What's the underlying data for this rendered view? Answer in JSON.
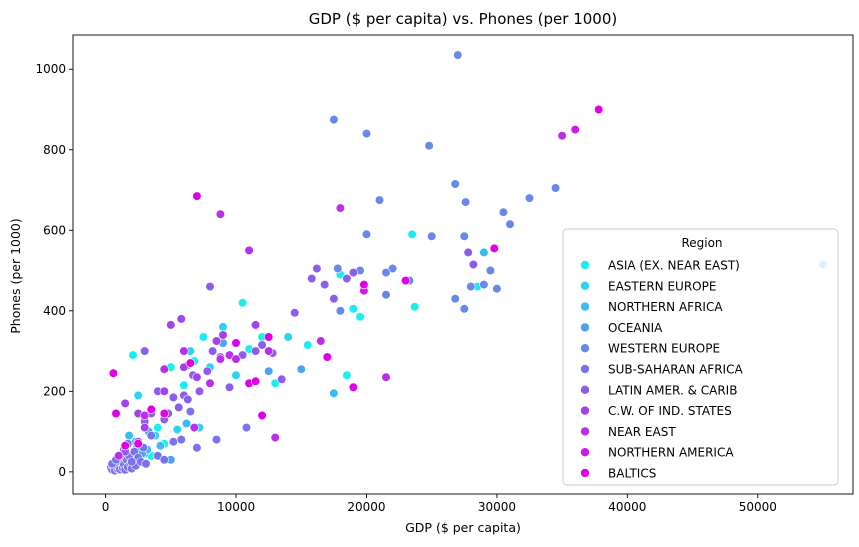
{
  "chart_data": {
    "type": "scatter",
    "title": "GDP ($ per capita) vs. Phones (per 1000)",
    "xlabel": "GDP ($ per capita)",
    "ylabel": "Phones (per 1000)",
    "xlim": [
      -2500,
      57300
    ],
    "ylim": [
      -55,
      1085
    ],
    "xticks": [
      0,
      10000,
      20000,
      30000,
      40000,
      50000
    ],
    "yticks": [
      0,
      200,
      400,
      600,
      800,
      1000
    ],
    "grid": false,
    "legend": {
      "title": "Region",
      "placement": "lower-right"
    },
    "series": [
      {
        "name": "ASIA (EX. NEAR EAST)",
        "color": "#1aeef0",
        "points": [
          [
            1300,
            30
          ],
          [
            2100,
            290
          ],
          [
            2600,
            70
          ],
          [
            3500,
            40
          ],
          [
            4000,
            110
          ],
          [
            4500,
            70
          ],
          [
            5000,
            260
          ],
          [
            6000,
            215
          ],
          [
            6800,
            275
          ],
          [
            7500,
            335
          ],
          [
            10500,
            420
          ],
          [
            11000,
            305
          ],
          [
            12000,
            335
          ],
          [
            13000,
            220
          ],
          [
            15500,
            315
          ],
          [
            18000,
            490
          ],
          [
            18500,
            240
          ],
          [
            19000,
            405
          ],
          [
            19500,
            385
          ],
          [
            23500,
            590
          ],
          [
            23700,
            410
          ],
          [
            28500,
            460
          ]
        ]
      },
      {
        "name": "EASTERN EUROPE",
        "color": "#2bd4ef",
        "points": [
          [
            2500,
            190
          ],
          [
            3000,
            45
          ],
          [
            3800,
            90
          ],
          [
            5500,
            105
          ],
          [
            6500,
            300
          ],
          [
            7200,
            110
          ],
          [
            8000,
            260
          ],
          [
            9000,
            360
          ],
          [
            10000,
            240
          ],
          [
            11500,
            225
          ],
          [
            14000,
            335
          ]
        ]
      },
      {
        "name": "NORTHERN AFRICA",
        "color": "#3cbcee",
        "points": [
          [
            1000,
            25
          ],
          [
            1800,
            90
          ],
          [
            2300,
            75
          ],
          [
            3200,
            55
          ],
          [
            4200,
            65
          ],
          [
            6200,
            120
          ],
          [
            17500,
            195
          ],
          [
            29000,
            545
          ]
        ]
      },
      {
        "name": "OCEANIA",
        "color": "#4da3ee",
        "points": [
          [
            1200,
            20
          ],
          [
            1600,
            35
          ],
          [
            2000,
            15
          ],
          [
            2400,
            60
          ],
          [
            2800,
            45
          ],
          [
            3300,
            100
          ],
          [
            5000,
            30
          ],
          [
            6300,
            265
          ],
          [
            9000,
            320
          ],
          [
            12500,
            250
          ],
          [
            15000,
            255
          ],
          [
            55000,
            515
          ]
        ]
      },
      {
        "name": "WESTERN EUROPE",
        "color": "#6888ec",
        "points": [
          [
            17500,
            875
          ],
          [
            20000,
            840
          ],
          [
            24800,
            810
          ],
          [
            27000,
            1035
          ],
          [
            26800,
            715
          ],
          [
            27600,
            670
          ],
          [
            21000,
            675
          ],
          [
            17800,
            505
          ],
          [
            20000,
            590
          ],
          [
            22000,
            505
          ],
          [
            23300,
            475
          ],
          [
            25000,
            585
          ],
          [
            27500,
            585
          ],
          [
            27800,
            545
          ],
          [
            28000,
            460
          ],
          [
            29000,
            465
          ],
          [
            29500,
            500
          ],
          [
            30000,
            455
          ],
          [
            30500,
            645
          ],
          [
            31000,
            615
          ],
          [
            32500,
            680
          ],
          [
            34500,
            705
          ],
          [
            26800,
            430
          ],
          [
            27500,
            405
          ],
          [
            21500,
            440
          ],
          [
            18000,
            400
          ],
          [
            19500,
            500
          ],
          [
            21500,
            495
          ]
        ]
      },
      {
        "name": "SUB-SAHARAN AFRICA",
        "color": "#7a73eb",
        "points": [
          [
            400,
            10
          ],
          [
            500,
            5
          ],
          [
            600,
            15
          ],
          [
            700,
            3
          ],
          [
            800,
            20
          ],
          [
            900,
            8
          ],
          [
            1000,
            12
          ],
          [
            1100,
            6
          ],
          [
            1200,
            25
          ],
          [
            1300,
            10
          ],
          [
            1400,
            18
          ],
          [
            1500,
            5
          ],
          [
            1600,
            30
          ],
          [
            1700,
            12
          ],
          [
            1800,
            40
          ],
          [
            1900,
            20
          ],
          [
            2000,
            8
          ],
          [
            2200,
            50
          ],
          [
            2300,
            15
          ],
          [
            2500,
            35
          ],
          [
            2700,
            25
          ],
          [
            2900,
            60
          ],
          [
            3100,
            20
          ],
          [
            3500,
            90
          ],
          [
            4000,
            40
          ],
          [
            4500,
            30
          ],
          [
            5200,
            75
          ],
          [
            5800,
            80
          ],
          [
            6500,
            150
          ],
          [
            7000,
            60
          ],
          [
            8500,
            80
          ],
          [
            10800,
            110
          ],
          [
            500,
            20
          ],
          [
            800,
            30
          ],
          [
            1100,
            40
          ],
          [
            1400,
            55
          ],
          [
            1700,
            70
          ],
          [
            2000,
            25
          ]
        ]
      },
      {
        "name": "LATIN AMER. & CARIB",
        "color": "#8b5feb",
        "points": [
          [
            1500,
            50
          ],
          [
            2500,
            75
          ],
          [
            3000,
            125
          ],
          [
            3500,
            145
          ],
          [
            4000,
            200
          ],
          [
            4500,
            130
          ],
          [
            4800,
            145
          ],
          [
            5200,
            185
          ],
          [
            5600,
            160
          ],
          [
            6000,
            190
          ],
          [
            6300,
            180
          ],
          [
            6700,
            240
          ],
          [
            7200,
            200
          ],
          [
            7800,
            250
          ],
          [
            8200,
            300
          ],
          [
            8800,
            285
          ],
          [
            9500,
            210
          ],
          [
            10000,
            320
          ],
          [
            10500,
            290
          ],
          [
            11500,
            300
          ],
          [
            12000,
            315
          ],
          [
            12800,
            295
          ],
          [
            13500,
            230
          ],
          [
            14500,
            395
          ],
          [
            15800,
            480
          ],
          [
            16200,
            505
          ],
          [
            16800,
            465
          ],
          [
            17500,
            430
          ],
          [
            18500,
            480
          ],
          [
            19000,
            495
          ],
          [
            27800,
            545
          ],
          [
            28200,
            515
          ],
          [
            3000,
            300
          ],
          [
            8000,
            460
          ]
        ]
      },
      {
        "name": "C.W. OF IND. STATES",
        "color": "#a443e9",
        "points": [
          [
            1500,
            170
          ],
          [
            2500,
            145
          ],
          [
            3000,
            110
          ],
          [
            4500,
            200
          ],
          [
            5000,
            365
          ],
          [
            5800,
            380
          ],
          [
            6000,
            260
          ],
          [
            7000,
            235
          ],
          [
            8500,
            325
          ],
          [
            9000,
            340
          ],
          [
            11500,
            365
          ]
        ]
      },
      {
        "name": "NEAR EAST",
        "color": "#ba2fe9",
        "points": [
          [
            1000,
            40
          ],
          [
            3000,
            140
          ],
          [
            4500,
            255
          ],
          [
            6000,
            300
          ],
          [
            8000,
            220
          ],
          [
            8800,
            280
          ],
          [
            9500,
            290
          ],
          [
            10000,
            280
          ],
          [
            11000,
            550
          ],
          [
            13000,
            85
          ],
          [
            16500,
            325
          ],
          [
            17000,
            285
          ],
          [
            18000,
            655
          ],
          [
            19000,
            210
          ],
          [
            21500,
            235
          ],
          [
            35000,
            835
          ],
          [
            36000,
            850
          ],
          [
            37800,
            900
          ],
          [
            6800,
            110
          ],
          [
            8800,
            640
          ],
          [
            12500,
            300
          ]
        ]
      },
      {
        "name": "NORTHERN AMERICA",
        "color": "#cc1ae8",
        "points": [
          [
            19800,
            450
          ],
          [
            36000,
            850
          ]
        ]
      },
      {
        "name": "BALTICS",
        "color": "#e000e8",
        "points": [
          [
            600,
            245
          ],
          [
            800,
            145
          ],
          [
            1500,
            65
          ],
          [
            2500,
            70
          ],
          [
            3500,
            155
          ],
          [
            4500,
            145
          ],
          [
            6500,
            270
          ],
          [
            7000,
            685
          ],
          [
            10000,
            320
          ],
          [
            11000,
            220
          ],
          [
            11500,
            225
          ],
          [
            12000,
            140
          ],
          [
            12500,
            335
          ],
          [
            17000,
            285
          ],
          [
            19000,
            210
          ],
          [
            19800,
            465
          ],
          [
            23000,
            475
          ],
          [
            29800,
            555
          ],
          [
            37800,
            900
          ]
        ]
      }
    ]
  }
}
